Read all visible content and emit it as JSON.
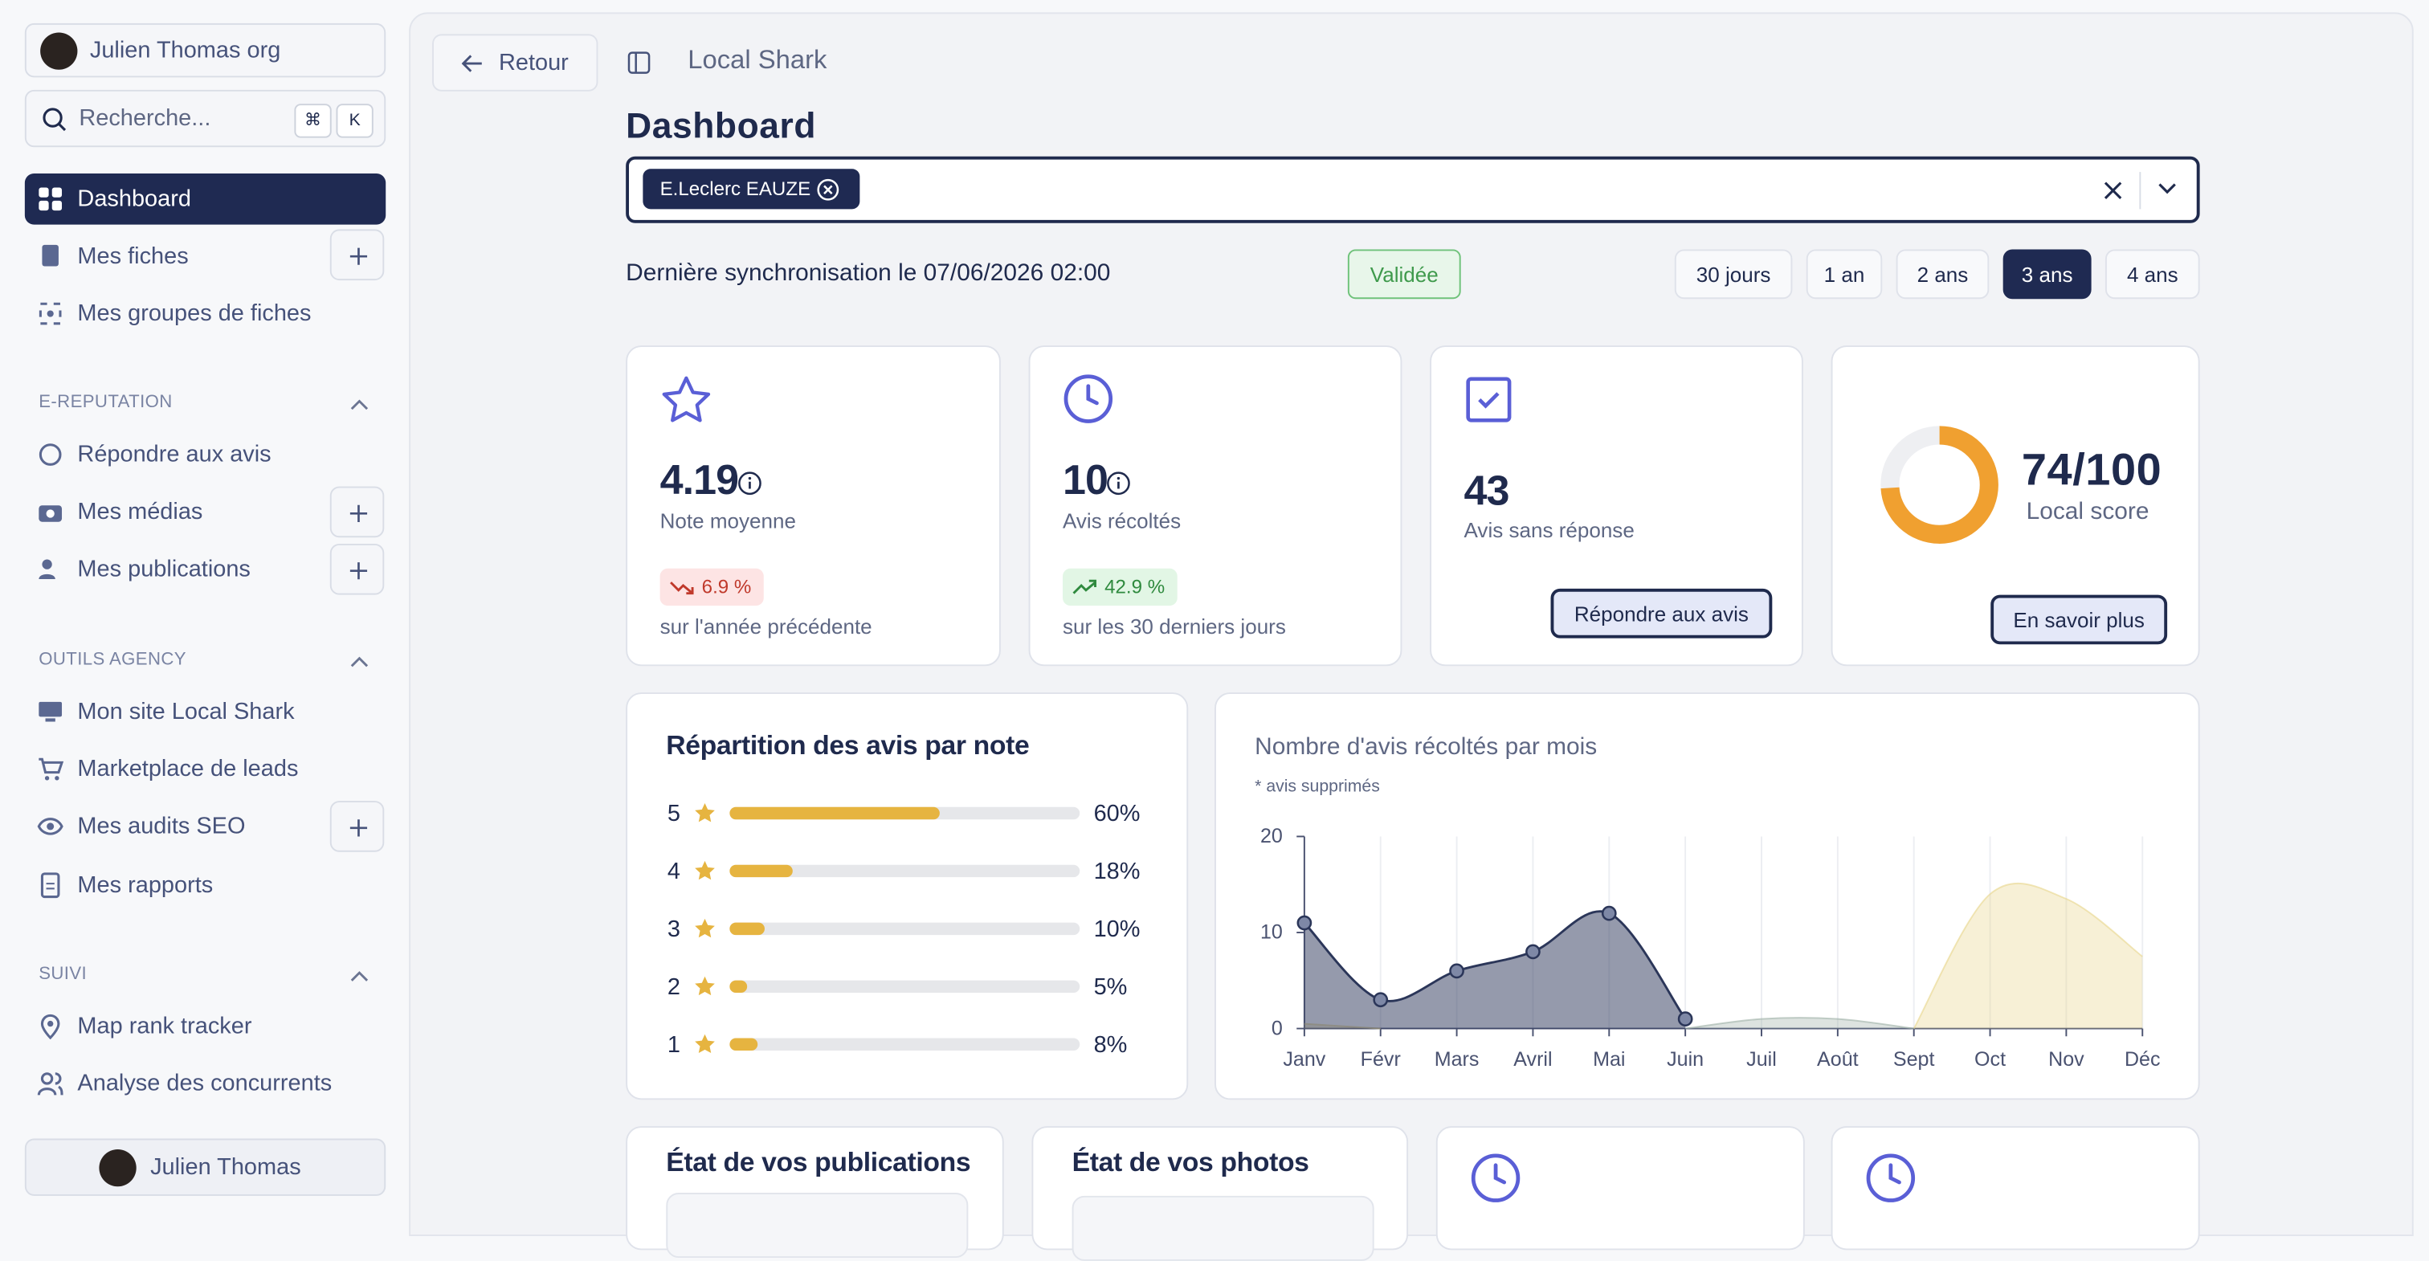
{
  "sidebar": {
    "org": "Julien Thomas org",
    "search": "Recherche...",
    "shortcut": [
      "⌘",
      "K"
    ],
    "nav": [
      "Dashboard",
      "Mes fiches",
      "Mes groupes de fiches"
    ],
    "sections": [
      {
        "title": "E-REPUTATION",
        "items": [
          "Répondre aux avis",
          "Mes médias",
          "Mes publications"
        ]
      },
      {
        "title": "OUTILS AGENCY",
        "items": [
          "Mon site Local Shark",
          "Marketplace de leads",
          "Mes audits SEO",
          "Mes rapports"
        ]
      },
      {
        "title": "SUIVI",
        "items": [
          "Map rank tracker",
          "Analyse des concurrents"
        ]
      }
    ],
    "user": "Julien Thomas"
  },
  "header": {
    "back": "Retour",
    "breadcrumb": "Local Shark",
    "title": "Dashboard"
  },
  "filter": {
    "chips": [
      "E.Leclerc EAUZE"
    ]
  },
  "sync": {
    "text": "Dernière synchronisation le 07/06/2026 02:00",
    "status": "Validée"
  },
  "periods": [
    "30 jours",
    "1 an",
    "2 ans",
    "3 ans",
    "4 ans"
  ],
  "stats": [
    {
      "value": "4.19",
      "label": "Note moyenne",
      "change": "6.9 %",
      "note": "sur l'année précédente"
    },
    {
      "value": "10",
      "label": "Avis récoltés",
      "change": "42.9 %",
      "note": "sur les 30 derniers jours"
    },
    {
      "value": "43",
      "label": "Avis sans réponse",
      "action": "Répondre aux avis"
    }
  ],
  "local_score": {
    "value": 74,
    "max": 100,
    "label": "74/100",
    "caption": "Local score",
    "action": "En savoir plus"
  },
  "chart_data": [
    {
      "type": "bar",
      "orientation": "horizontal",
      "title": "Répartition des avis par note",
      "categories": [
        "5",
        "4",
        "3",
        "2",
        "1"
      ],
      "values": [
        60,
        18,
        10,
        5,
        8
      ],
      "value_labels": [
        "60%",
        "18%",
        "10%",
        "5%",
        "8%"
      ],
      "xlim": [
        0,
        100
      ],
      "color": "#e6b440"
    },
    {
      "type": "area",
      "title": "Nombre d'avis récoltés par mois",
      "subtitle": "* avis supprimés",
      "categories": [
        "Janv",
        "Févr",
        "Mars",
        "Avril",
        "Mai",
        "Juin",
        "Juil",
        "Août",
        "Sept",
        "Oct",
        "Nov",
        "Déc"
      ],
      "series": [
        {
          "color": "#2b3659",
          "markers": true,
          "values": [
            11,
            3,
            6,
            8,
            12,
            1,
            null,
            null,
            null,
            null,
            null,
            null
          ]
        },
        {
          "color": "#9fb0a6",
          "values": [
            null,
            null,
            null,
            null,
            null,
            0,
            1,
            1,
            0,
            null,
            null,
            null
          ]
        },
        {
          "color": "#e8d58a",
          "values": [
            0.5,
            0,
            null,
            null,
            null,
            null,
            null,
            null,
            0,
            14,
            13.5,
            7.5
          ]
        }
      ],
      "ylim": [
        0,
        20
      ],
      "yticks": [
        0,
        10,
        20
      ],
      "grid": "x"
    }
  ],
  "bottom_cards": [
    "État de vos publications",
    "État de vos photos"
  ]
}
